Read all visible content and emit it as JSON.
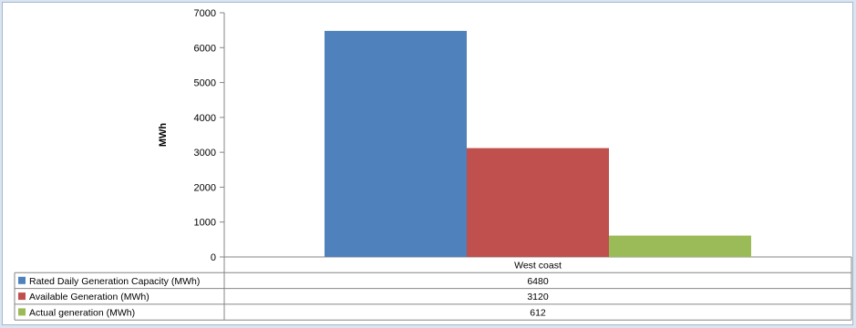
{
  "chart_data": {
    "type": "bar",
    "categories": [
      "West coast"
    ],
    "series": [
      {
        "name": "Rated Daily Generation Capacity (MWh)",
        "values": [
          6480
        ],
        "color": "#4f81bd"
      },
      {
        "name": "Available Generation (MWh)",
        "values": [
          3120
        ],
        "color": "#c0504d"
      },
      {
        "name": "Actual generation (MWh)",
        "values": [
          612
        ],
        "color": "#9bbb59"
      }
    ],
    "title": "",
    "xlabel": "",
    "ylabel": "MWh",
    "ylim": [
      0,
      7000
    ],
    "yticks": [
      0,
      1000,
      2000,
      3000,
      4000,
      5000,
      6000,
      7000
    ],
    "grid": false,
    "legend": "data-table"
  }
}
